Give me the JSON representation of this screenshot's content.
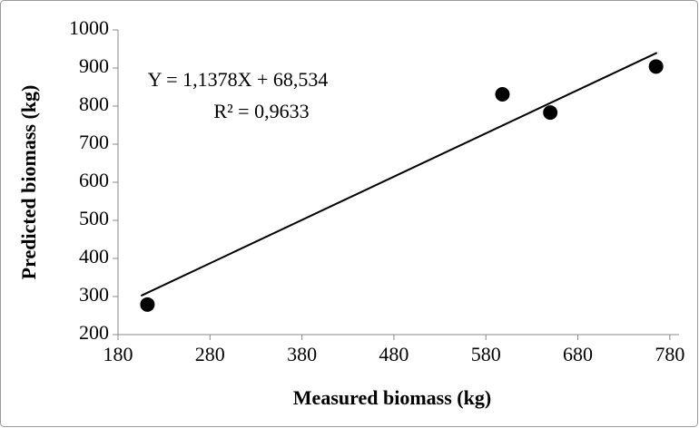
{
  "chart_data": {
    "type": "scatter",
    "x_label": "Measured biomass (kg)",
    "y_label": "Predicted biomass (kg)",
    "annotations": [
      "Y = 1,1378X + 68,534",
      "R² = 0,9633"
    ],
    "x": [
      212,
      598,
      650,
      765
    ],
    "values": [
      279,
      831,
      783,
      904
    ],
    "color": "#000000",
    "trendline": {
      "x": [
        205,
        766
      ],
      "values": [
        302,
        940
      ],
      "color": "#000000"
    },
    "xlim": [
      180,
      790
    ],
    "ylim": [
      200,
      1000
    ],
    "xticks": [
      180,
      280,
      380,
      480,
      580,
      680,
      780
    ],
    "yticks": [
      200,
      300,
      400,
      500,
      600,
      700,
      800,
      900,
      1000
    ],
    "grid": false
  }
}
